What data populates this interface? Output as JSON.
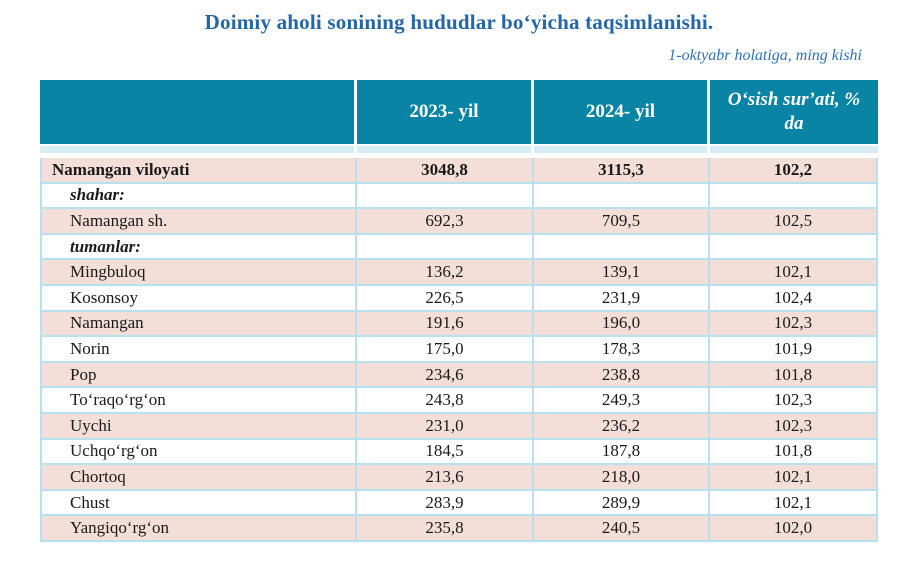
{
  "title": "Doimiy aholi sonining hududlar boʻyicha taqsimlanishi.",
  "subtitle": "1-oktyabr holatiga, ming kishi",
  "colors": {
    "header_teal": "#0984a4",
    "row_pink": "#f3ded8",
    "spacer_cyan": "#d8eef6",
    "border_light_blue": "#b9e0ee",
    "title_blue": "#2566a5",
    "subtitle_blue": "#2e73b8",
    "body_text": "#1a1a1a"
  },
  "table": {
    "columns": [
      "",
      "2023- yil",
      "2024- yil",
      "Oʻsish surʼati, % da"
    ],
    "rows": [
      {
        "name": "Namangan viloyati",
        "y2023": "3048,8",
        "y2024": "3115,3",
        "growth": "102,2",
        "style": "province"
      },
      {
        "name": "shahar:",
        "y2023": "",
        "y2024": "",
        "growth": "",
        "style": "group"
      },
      {
        "name": "Namangan sh.",
        "y2023": "692,3",
        "y2024": "709,5",
        "growth": "102,5",
        "style": ""
      },
      {
        "name": "tumanlar:",
        "y2023": "",
        "y2024": "",
        "growth": "",
        "style": "group"
      },
      {
        "name": "Mingbuloq",
        "y2023": "136,2",
        "y2024": "139,1",
        "growth": "102,1",
        "style": ""
      },
      {
        "name": "Kosonsoy",
        "y2023": "226,5",
        "y2024": "231,9",
        "growth": "102,4",
        "style": ""
      },
      {
        "name": "Namangan",
        "y2023": "191,6",
        "y2024": "196,0",
        "growth": "102,3",
        "style": ""
      },
      {
        "name": "Norin",
        "y2023": "175,0",
        "y2024": "178,3",
        "growth": "101,9",
        "style": ""
      },
      {
        "name": "Pop",
        "y2023": "234,6",
        "y2024": "238,8",
        "growth": "101,8",
        "style": ""
      },
      {
        "name": "Toʻraqoʻrgʻon",
        "y2023": "243,8",
        "y2024": "249,3",
        "growth": "102,3",
        "style": ""
      },
      {
        "name": "Uychi",
        "y2023": "231,0",
        "y2024": "236,2",
        "growth": "102,3",
        "style": ""
      },
      {
        "name": "Uchqoʻrgʻon",
        "y2023": "184,5",
        "y2024": "187,8",
        "growth": "101,8",
        "style": ""
      },
      {
        "name": "Chortoq",
        "y2023": "213,6",
        "y2024": "218,0",
        "growth": "102,1",
        "style": ""
      },
      {
        "name": "Chust",
        "y2023": "283,9",
        "y2024": "289,9",
        "growth": "102,1",
        "style": ""
      },
      {
        "name": "Yangiqoʻrgʻon",
        "y2023": "235,8",
        "y2024": "240,5",
        "growth": "102,0",
        "style": ""
      }
    ]
  }
}
